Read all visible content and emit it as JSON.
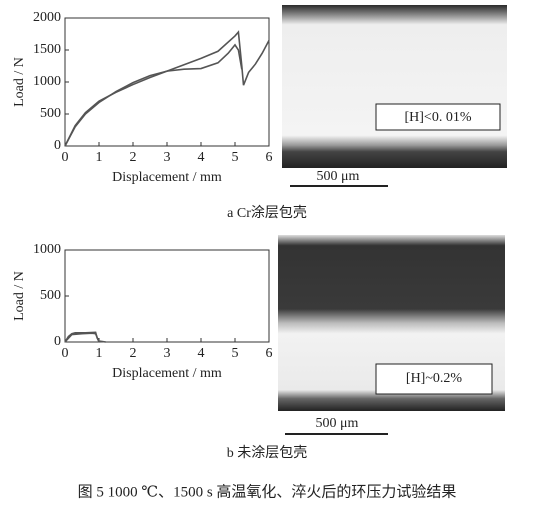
{
  "chart_data": [
    {
      "type": "line",
      "caption": "a  Cr涂层包壳",
      "x_label": "Displacement / mm",
      "y_label": "Load / N",
      "xlim": [
        0,
        6
      ],
      "xticks": [
        0,
        1,
        2,
        3,
        4,
        5,
        6
      ],
      "ylim": [
        0,
        2000
      ],
      "yticks": [
        0,
        500,
        1000,
        1500,
        2000
      ],
      "grid": false,
      "series": [
        {
          "color": "#555555",
          "x": [
            0,
            0.3,
            0.6,
            1,
            1.5,
            2,
            2.5,
            3,
            3.5,
            4,
            4.5,
            5,
            5.1,
            5.2,
            5.25,
            5.4,
            5.6,
            5.8,
            6
          ],
          "values": [
            0,
            320,
            520,
            700,
            840,
            960,
            1070,
            1170,
            1270,
            1370,
            1480,
            1720,
            1780,
            1250,
            950,
            1150,
            1280,
            1450,
            1650
          ]
        },
        {
          "color": "#555555",
          "x": [
            0,
            0.3,
            0.6,
            1,
            1.5,
            2,
            2.5,
            3,
            3.5,
            4,
            4.5,
            4.8,
            5,
            5.1,
            5.2
          ],
          "values": [
            0,
            300,
            500,
            680,
            850,
            990,
            1100,
            1170,
            1200,
            1210,
            1300,
            1450,
            1580,
            1500,
            1200
          ]
        }
      ]
    },
    {
      "type": "line",
      "caption": "b  未涂层包壳",
      "x_label": "Displacement / mm",
      "y_label": "Load / N",
      "xlim": [
        0,
        6
      ],
      "xticks": [
        0,
        1,
        2,
        3,
        4,
        5,
        6
      ],
      "ylim": [
        0,
        1000
      ],
      "yticks": [
        0,
        500,
        1000
      ],
      "grid": false,
      "series": [
        {
          "color": "#555555",
          "x": [
            0,
            0.1,
            0.2,
            0.3,
            0.6,
            0.9,
            0.95,
            1.0,
            1.2
          ],
          "values": [
            0,
            60,
            90,
            100,
            100,
            105,
            40,
            10,
            0
          ]
        },
        {
          "color": "#555555",
          "x": [
            0,
            0.2,
            0.5,
            0.8,
            0.9,
            1.0
          ],
          "values": [
            0,
            80,
            90,
            95,
            90,
            0
          ]
        }
      ]
    }
  ],
  "micrographs": [
    {
      "label": "[H]<0. 01%",
      "scale_bar": "500 μm"
    },
    {
      "label": "[H]~0.2%",
      "scale_bar": "500 μm"
    }
  ],
  "figure_caption": "图 5   1000 ℃、1500 s 高温氧化、淬火后的环压力试验结果"
}
